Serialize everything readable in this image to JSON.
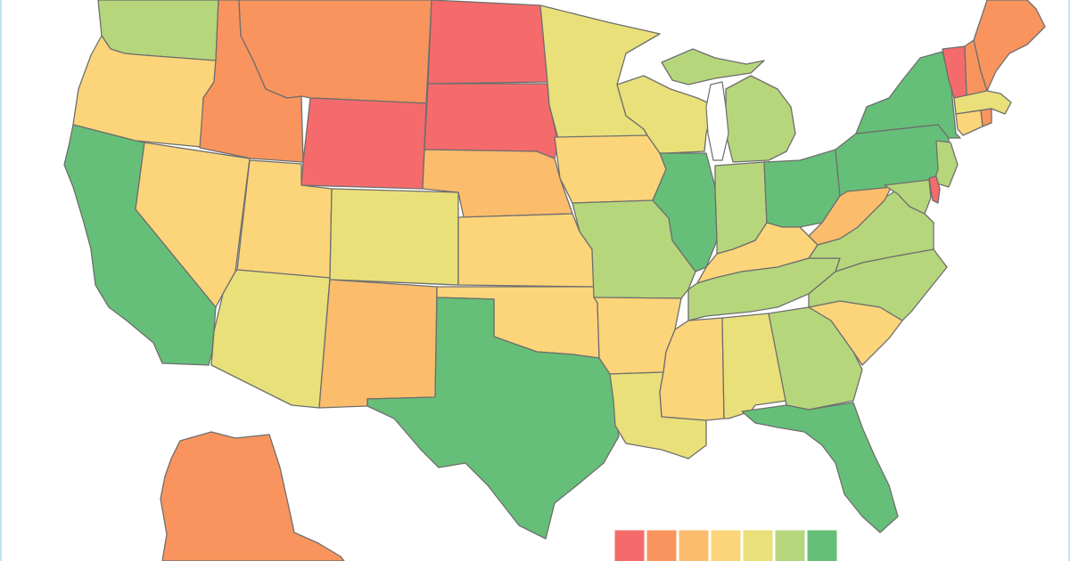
{
  "map": {
    "type": "choropleth",
    "region": "United States",
    "color_scale": [
      "#f56b6b",
      "#f9945e",
      "#fbbd6c",
      "#fcd57a",
      "#e9e07a",
      "#b6d67c",
      "#66bf78"
    ],
    "legend": {
      "placement": "bottom-center",
      "labels_visible": false,
      "bins": 7
    },
    "states": [
      {
        "code": "WA",
        "bin": 5
      },
      {
        "code": "OR",
        "bin": 3
      },
      {
        "code": "CA",
        "bin": 6
      },
      {
        "code": "ID",
        "bin": 1
      },
      {
        "code": "NV",
        "bin": 3
      },
      {
        "code": "MT",
        "bin": 1
      },
      {
        "code": "WY",
        "bin": 0
      },
      {
        "code": "UT",
        "bin": 3
      },
      {
        "code": "AZ",
        "bin": 4
      },
      {
        "code": "CO",
        "bin": 4
      },
      {
        "code": "NM",
        "bin": 2
      },
      {
        "code": "ND",
        "bin": 0
      },
      {
        "code": "SD",
        "bin": 0
      },
      {
        "code": "NE",
        "bin": 2
      },
      {
        "code": "KS",
        "bin": 3
      },
      {
        "code": "OK",
        "bin": 3
      },
      {
        "code": "TX",
        "bin": 6
      },
      {
        "code": "MN",
        "bin": 4
      },
      {
        "code": "IA",
        "bin": 3
      },
      {
        "code": "MO",
        "bin": 5
      },
      {
        "code": "AR",
        "bin": 3
      },
      {
        "code": "LA",
        "bin": 4
      },
      {
        "code": "WI",
        "bin": 4
      },
      {
        "code": "IL",
        "bin": 6
      },
      {
        "code": "MI",
        "bin": 5
      },
      {
        "code": "IN",
        "bin": 5
      },
      {
        "code": "OH",
        "bin": 6
      },
      {
        "code": "KY",
        "bin": 3
      },
      {
        "code": "TN",
        "bin": 5
      },
      {
        "code": "MS",
        "bin": 3
      },
      {
        "code": "AL",
        "bin": 4
      },
      {
        "code": "GA",
        "bin": 5
      },
      {
        "code": "FL",
        "bin": 6
      },
      {
        "code": "SC",
        "bin": 3
      },
      {
        "code": "NC",
        "bin": 5
      },
      {
        "code": "VA",
        "bin": 5
      },
      {
        "code": "WV",
        "bin": 2
      },
      {
        "code": "PA",
        "bin": 6
      },
      {
        "code": "NY",
        "bin": 6
      },
      {
        "code": "NJ",
        "bin": 5
      },
      {
        "code": "DE",
        "bin": 0
      },
      {
        "code": "MD",
        "bin": 5
      },
      {
        "code": "VT",
        "bin": 0
      },
      {
        "code": "NH",
        "bin": 1
      },
      {
        "code": "ME",
        "bin": 1
      },
      {
        "code": "MA",
        "bin": 4
      },
      {
        "code": "CT",
        "bin": 3
      },
      {
        "code": "RI",
        "bin": 1
      },
      {
        "code": "AK",
        "bin": 1
      }
    ]
  }
}
